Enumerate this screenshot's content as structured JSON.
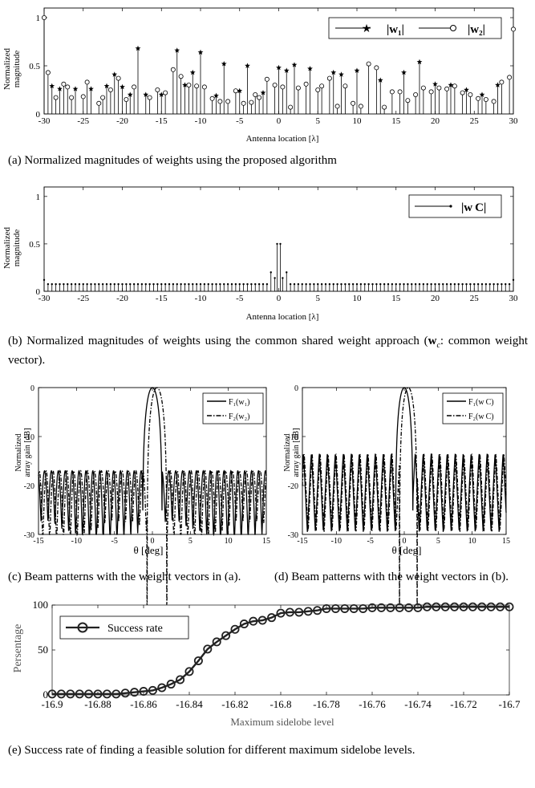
{
  "captions": {
    "a": "(a) Normalized magnitudes of weights using the proposed algorithm",
    "b": "(b) Normalized magnitudes of weights using the common shared weight approach (w c: common weight vector).",
    "c": "(c) Beam patterns with the weight vectors in (a).",
    "d": "(d) Beam patterns with the weight vectors in (b).",
    "e": "(e) Success rate of finding a feasible solution for different maximum sidelobe levels."
  },
  "chart_data": [
    {
      "id": "a",
      "type": "stem",
      "title": "",
      "xlabel": "Antenna location [λ]",
      "ylabel": "Normalized magnitude",
      "xlim": [
        -30,
        30
      ],
      "ylim": [
        0,
        1.1
      ],
      "xticks": [
        -30,
        -25,
        -20,
        -15,
        -10,
        -5,
        0,
        5,
        10,
        15,
        20,
        25,
        30
      ],
      "yticks": [
        0,
        0.5,
        1
      ],
      "legend_position": "top-right",
      "series": [
        {
          "name": "|w₁|",
          "marker": "star",
          "x": [
            -29,
            -28,
            -26,
            -24,
            -22,
            -21,
            -20,
            -19,
            -18,
            -17,
            -15,
            -13,
            -12,
            -11,
            -10,
            -8,
            -7,
            -5,
            -4,
            -2,
            0,
            1,
            2,
            4,
            7,
            8,
            10,
            13,
            16,
            18,
            20,
            22,
            24,
            26,
            28
          ],
          "values": [
            0.29,
            0.26,
            0.26,
            0.26,
            0.29,
            0.41,
            0.28,
            0.2,
            0.68,
            0.2,
            0.2,
            0.66,
            0.3,
            0.43,
            0.64,
            0.19,
            0.52,
            0.24,
            0.5,
            0.22,
            0.48,
            0.45,
            0.51,
            0.47,
            0.43,
            0.41,
            0.45,
            0.35,
            0.43,
            0.54,
            0.31,
            0.3,
            0.25,
            0.2,
            0.3
          ]
        },
        {
          "name": "|w₂|",
          "marker": "circle",
          "x": [
            -30,
            -29.5,
            -28.5,
            -27.5,
            -27,
            -26.5,
            -25,
            -24.5,
            -23,
            -22.5,
            -21.5,
            -20.5,
            -19.5,
            -18.5,
            -16.5,
            -15.5,
            -14.5,
            -13.5,
            -12.5,
            -11.5,
            -10.5,
            -9.5,
            -8.5,
            -7.5,
            -6.5,
            -5.5,
            -4.5,
            -3.5,
            -3,
            -2.5,
            -1.5,
            -0.5,
            0.5,
            1.5,
            2.5,
            3.5,
            5,
            5.5,
            6.5,
            7.5,
            8.5,
            9.5,
            10.5,
            11.5,
            12.5,
            13.5,
            14.5,
            15.5,
            16.5,
            17.5,
            18.5,
            19.5,
            20.5,
            21.5,
            22.5,
            23.5,
            24.5,
            25.5,
            26.5,
            27.5,
            28.5,
            29.5,
            30
          ],
          "values": [
            1.0,
            0.43,
            0.17,
            0.31,
            0.28,
            0.17,
            0.18,
            0.33,
            0.11,
            0.17,
            0.25,
            0.37,
            0.15,
            0.28,
            0.17,
            0.25,
            0.22,
            0.46,
            0.39,
            0.3,
            0.29,
            0.28,
            0.16,
            0.13,
            0.13,
            0.24,
            0.11,
            0.12,
            0.2,
            0.17,
            0.36,
            0.3,
            0.28,
            0.07,
            0.27,
            0.31,
            0.25,
            0.29,
            0.37,
            0.08,
            0.29,
            0.11,
            0.08,
            0.52,
            0.48,
            0.07,
            0.23,
            0.23,
            0.14,
            0.2,
            0.27,
            0.23,
            0.27,
            0.26,
            0.29,
            0.22,
            0.2,
            0.16,
            0.15,
            0.13,
            0.33,
            0.38,
            0.88
          ]
        }
      ]
    },
    {
      "id": "b",
      "type": "stem",
      "title": "",
      "xlabel": "Antenna location [λ]",
      "ylabel": "Normalized magnitude",
      "xlim": [
        -30,
        30
      ],
      "ylim": [
        0,
        1.1
      ],
      "xticks": [
        -30,
        -25,
        -20,
        -15,
        -10,
        -5,
        0,
        5,
        10,
        15,
        20,
        25,
        30
      ],
      "yticks": [
        0,
        0.5,
        1
      ],
      "legend_position": "top-right",
      "series": [
        {
          "name": "|w C|",
          "marker": "dot",
          "x_range": [
            -30,
            30
          ],
          "x_step": 0.5,
          "base_value": 0.075,
          "overrides": [
            {
              "x": -30,
              "value": 0.12
            },
            {
              "x": -1,
              "value": 0.2
            },
            {
              "x": -0.5,
              "value": 0.14
            },
            {
              "x": 0,
              "value": 0.5
            },
            {
              "x": 0.5,
              "value": 0.14
            },
            {
              "x": 1,
              "value": 0.2
            },
            {
              "x": 30,
              "value": 0.12
            }
          ],
          "double_stem_at_zero": [
            0.5,
            0.5
          ]
        }
      ]
    },
    {
      "id": "c",
      "type": "line",
      "title": "",
      "xlabel": "θ [deg]",
      "ylabel": "Normalized array gain [dB]",
      "xlim": [
        -15,
        15
      ],
      "ylim": [
        -30,
        0
      ],
      "xticks": [
        -15,
        -10,
        -5,
        0,
        5,
        10,
        15
      ],
      "yticks": [
        0,
        -10,
        -20,
        -30
      ],
      "legend_position": "top-right",
      "series": [
        {
          "name": "F₁(w₁)",
          "style": "solid",
          "mainlobe_center": 0,
          "mainlobe_halfwidth": 1.3,
          "sidelobe_level": -17.0
        },
        {
          "name": "F₂(w₂)",
          "style": "dashdot",
          "mainlobe_center": 0.6,
          "mainlobe_halfwidth": 1.3,
          "sidelobe_level": -17.0
        }
      ]
    },
    {
      "id": "d",
      "type": "line",
      "title": "",
      "xlabel": "θ [deg]",
      "ylabel": "Normalized array gain [dB]",
      "xlim": [
        -15,
        15
      ],
      "ylim": [
        -30,
        0
      ],
      "xticks": [
        -15,
        -10,
        -5,
        0,
        5,
        10,
        15
      ],
      "yticks": [
        0,
        -10,
        -20,
        -30
      ],
      "legend_position": "top-right",
      "series": [
        {
          "name": "F₁(w C)",
          "style": "solid",
          "mainlobe_center": 0,
          "mainlobe_halfwidth": 1.3,
          "sidelobe_level": -13.5
        },
        {
          "name": "F₂(w C)",
          "style": "dashdot",
          "mainlobe_center": 0.6,
          "mainlobe_halfwidth": 1.3,
          "sidelobe_level": -13.5
        }
      ]
    },
    {
      "id": "e",
      "type": "line",
      "title": "",
      "xlabel": "Maximum sidelobe level",
      "ylabel": "Persentage",
      "xlim": [
        -16.9,
        -16.7
      ],
      "ylim": [
        0,
        100
      ],
      "xticks": [
        -16.9,
        -16.88,
        -16.86,
        -16.84,
        -16.82,
        -16.8,
        -16.78,
        -16.76,
        -16.74,
        -16.72,
        -16.7
      ],
      "yticks": [
        0,
        50,
        100
      ],
      "legend_position": "top-left",
      "grid": false,
      "series": [
        {
          "name": "Success rate",
          "marker": "circle",
          "x": [
            -16.9,
            -16.896,
            -16.892,
            -16.888,
            -16.884,
            -16.88,
            -16.876,
            -16.872,
            -16.868,
            -16.864,
            -16.86,
            -16.856,
            -16.852,
            -16.848,
            -16.844,
            -16.84,
            -16.836,
            -16.832,
            -16.828,
            -16.824,
            -16.82,
            -16.816,
            -16.812,
            -16.808,
            -16.804,
            -16.8,
            -16.796,
            -16.792,
            -16.788,
            -16.784,
            -16.78,
            -16.776,
            -16.772,
            -16.768,
            -16.764,
            -16.76,
            -16.756,
            -16.752,
            -16.748,
            -16.744,
            -16.74,
            -16.736,
            -16.732,
            -16.728,
            -16.724,
            -16.72,
            -16.716,
            -16.712,
            -16.708,
            -16.704,
            -16.7
          ],
          "values": [
            1,
            1,
            1,
            1,
            1,
            1,
            1,
            1,
            2,
            3,
            4,
            5,
            8,
            12,
            17,
            26,
            38,
            51,
            59,
            66,
            73,
            79,
            82,
            83,
            86,
            91,
            92,
            92,
            93,
            94,
            96,
            96,
            96,
            96,
            96,
            97,
            97,
            97,
            97,
            97,
            97,
            98,
            98,
            98,
            98,
            98,
            98,
            98,
            98,
            98,
            98
          ]
        }
      ]
    }
  ]
}
